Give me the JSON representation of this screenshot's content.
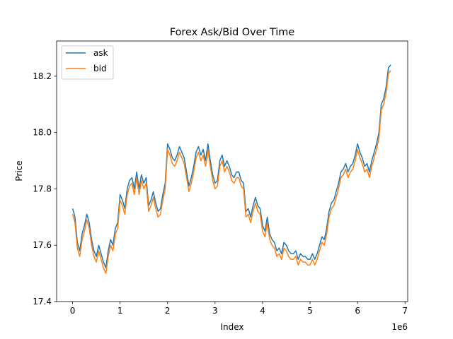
{
  "chart_data": {
    "type": "line",
    "title": "Forex Ask/Bid Over Time",
    "xlabel": "Index",
    "ylabel": "Price",
    "x_offset_text": "1e6",
    "xlim": [
      -0.336,
      7.056
    ],
    "ylim": [
      17.4,
      18.325
    ],
    "x_ticks": [
      0,
      1,
      2,
      3,
      4,
      5,
      6,
      7
    ],
    "x_tick_labels": [
      "0",
      "1",
      "2",
      "3",
      "4",
      "5",
      "6",
      "7"
    ],
    "y_ticks": [
      17.4,
      17.6,
      17.8,
      18.0,
      18.2
    ],
    "y_tick_labels": [
      "17.4",
      "17.6",
      "17.8",
      "18.0",
      "18.2"
    ],
    "grid": false,
    "legend_position": "upper-left",
    "x": [
      0.0,
      0.05,
      0.1,
      0.15,
      0.2,
      0.25,
      0.3,
      0.35,
      0.4,
      0.45,
      0.5,
      0.55,
      0.6,
      0.65,
      0.7,
      0.75,
      0.8,
      0.85,
      0.9,
      0.95,
      1.0,
      1.05,
      1.1,
      1.15,
      1.2,
      1.25,
      1.3,
      1.35,
      1.4,
      1.45,
      1.5,
      1.55,
      1.6,
      1.65,
      1.7,
      1.75,
      1.8,
      1.85,
      1.9,
      1.95,
      2.0,
      2.05,
      2.1,
      2.15,
      2.2,
      2.25,
      2.3,
      2.35,
      2.4,
      2.45,
      2.5,
      2.55,
      2.6,
      2.65,
      2.7,
      2.75,
      2.8,
      2.85,
      2.9,
      2.95,
      3.0,
      3.05,
      3.1,
      3.15,
      3.2,
      3.25,
      3.3,
      3.35,
      3.4,
      3.45,
      3.5,
      3.55,
      3.6,
      3.65,
      3.7,
      3.75,
      3.8,
      3.85,
      3.9,
      3.95,
      4.0,
      4.05,
      4.1,
      4.15,
      4.2,
      4.25,
      4.3,
      4.35,
      4.4,
      4.45,
      4.5,
      4.55,
      4.6,
      4.65,
      4.7,
      4.75,
      4.8,
      4.85,
      4.9,
      4.95,
      5.0,
      5.05,
      5.1,
      5.15,
      5.2,
      5.25,
      5.3,
      5.35,
      5.4,
      5.45,
      5.5,
      5.55,
      5.6,
      5.65,
      5.7,
      5.75,
      5.8,
      5.85,
      5.9,
      5.95,
      6.0,
      6.05,
      6.1,
      6.15,
      6.2,
      6.25,
      6.3,
      6.35,
      6.4,
      6.45,
      6.5,
      6.55,
      6.6,
      6.65,
      6.7
    ],
    "series": [
      {
        "name": "ask",
        "color": "#1f77b4",
        "values": [
          17.73,
          17.7,
          17.61,
          17.58,
          17.64,
          17.67,
          17.71,
          17.68,
          17.62,
          17.58,
          17.56,
          17.6,
          17.57,
          17.54,
          17.52,
          17.58,
          17.62,
          17.6,
          17.66,
          17.68,
          17.78,
          17.76,
          17.73,
          17.8,
          17.83,
          17.84,
          17.8,
          17.86,
          17.8,
          17.85,
          17.82,
          17.84,
          17.74,
          17.76,
          17.79,
          17.75,
          17.72,
          17.73,
          17.78,
          17.82,
          17.96,
          17.94,
          17.91,
          17.9,
          17.92,
          17.95,
          17.93,
          17.91,
          17.86,
          17.81,
          17.84,
          17.88,
          17.93,
          17.95,
          17.92,
          17.94,
          17.9,
          17.96,
          17.9,
          17.85,
          17.82,
          17.83,
          17.9,
          17.92,
          17.88,
          17.9,
          17.88,
          17.85,
          17.84,
          17.86,
          17.86,
          17.83,
          17.82,
          17.72,
          17.73,
          17.7,
          17.74,
          17.77,
          17.74,
          17.73,
          17.67,
          17.65,
          17.7,
          17.64,
          17.62,
          17.61,
          17.58,
          17.59,
          17.57,
          17.61,
          17.6,
          17.58,
          17.57,
          17.57,
          17.58,
          17.55,
          17.57,
          17.56,
          17.56,
          17.55,
          17.55,
          17.57,
          17.55,
          17.57,
          17.6,
          17.63,
          17.62,
          17.66,
          17.72,
          17.75,
          17.76,
          17.79,
          17.82,
          17.86,
          17.87,
          17.89,
          17.86,
          17.88,
          17.89,
          17.92,
          17.96,
          17.93,
          17.91,
          17.88,
          17.89,
          17.86,
          17.9,
          17.93,
          17.96,
          18.0,
          18.1,
          18.12,
          18.16,
          18.23,
          18.24
        ]
      },
      {
        "name": "bid",
        "color": "#ff7f0e",
        "values": [
          17.71,
          17.68,
          17.59,
          17.56,
          17.62,
          17.65,
          17.69,
          17.66,
          17.6,
          17.56,
          17.54,
          17.58,
          17.55,
          17.52,
          17.5,
          17.56,
          17.6,
          17.58,
          17.64,
          17.66,
          17.76,
          17.74,
          17.71,
          17.78,
          17.81,
          17.82,
          17.78,
          17.84,
          17.78,
          17.83,
          17.8,
          17.82,
          17.72,
          17.74,
          17.77,
          17.73,
          17.7,
          17.71,
          17.76,
          17.8,
          17.94,
          17.92,
          17.89,
          17.88,
          17.9,
          17.93,
          17.91,
          17.89,
          17.84,
          17.79,
          17.82,
          17.86,
          17.91,
          17.93,
          17.9,
          17.92,
          17.88,
          17.94,
          17.88,
          17.83,
          17.8,
          17.81,
          17.88,
          17.9,
          17.86,
          17.88,
          17.86,
          17.83,
          17.82,
          17.84,
          17.84,
          17.81,
          17.8,
          17.7,
          17.71,
          17.68,
          17.72,
          17.75,
          17.72,
          17.71,
          17.65,
          17.63,
          17.68,
          17.62,
          17.6,
          17.59,
          17.56,
          17.57,
          17.55,
          17.59,
          17.58,
          17.56,
          17.55,
          17.55,
          17.56,
          17.53,
          17.55,
          17.54,
          17.54,
          17.53,
          17.53,
          17.55,
          17.53,
          17.55,
          17.58,
          17.61,
          17.6,
          17.64,
          17.7,
          17.73,
          17.74,
          17.77,
          17.8,
          17.84,
          17.85,
          17.87,
          17.84,
          17.86,
          17.87,
          17.9,
          17.94,
          17.91,
          17.89,
          17.86,
          17.87,
          17.84,
          17.88,
          17.91,
          17.94,
          17.98,
          18.08,
          18.1,
          18.14,
          18.21,
          18.22
        ]
      }
    ]
  }
}
